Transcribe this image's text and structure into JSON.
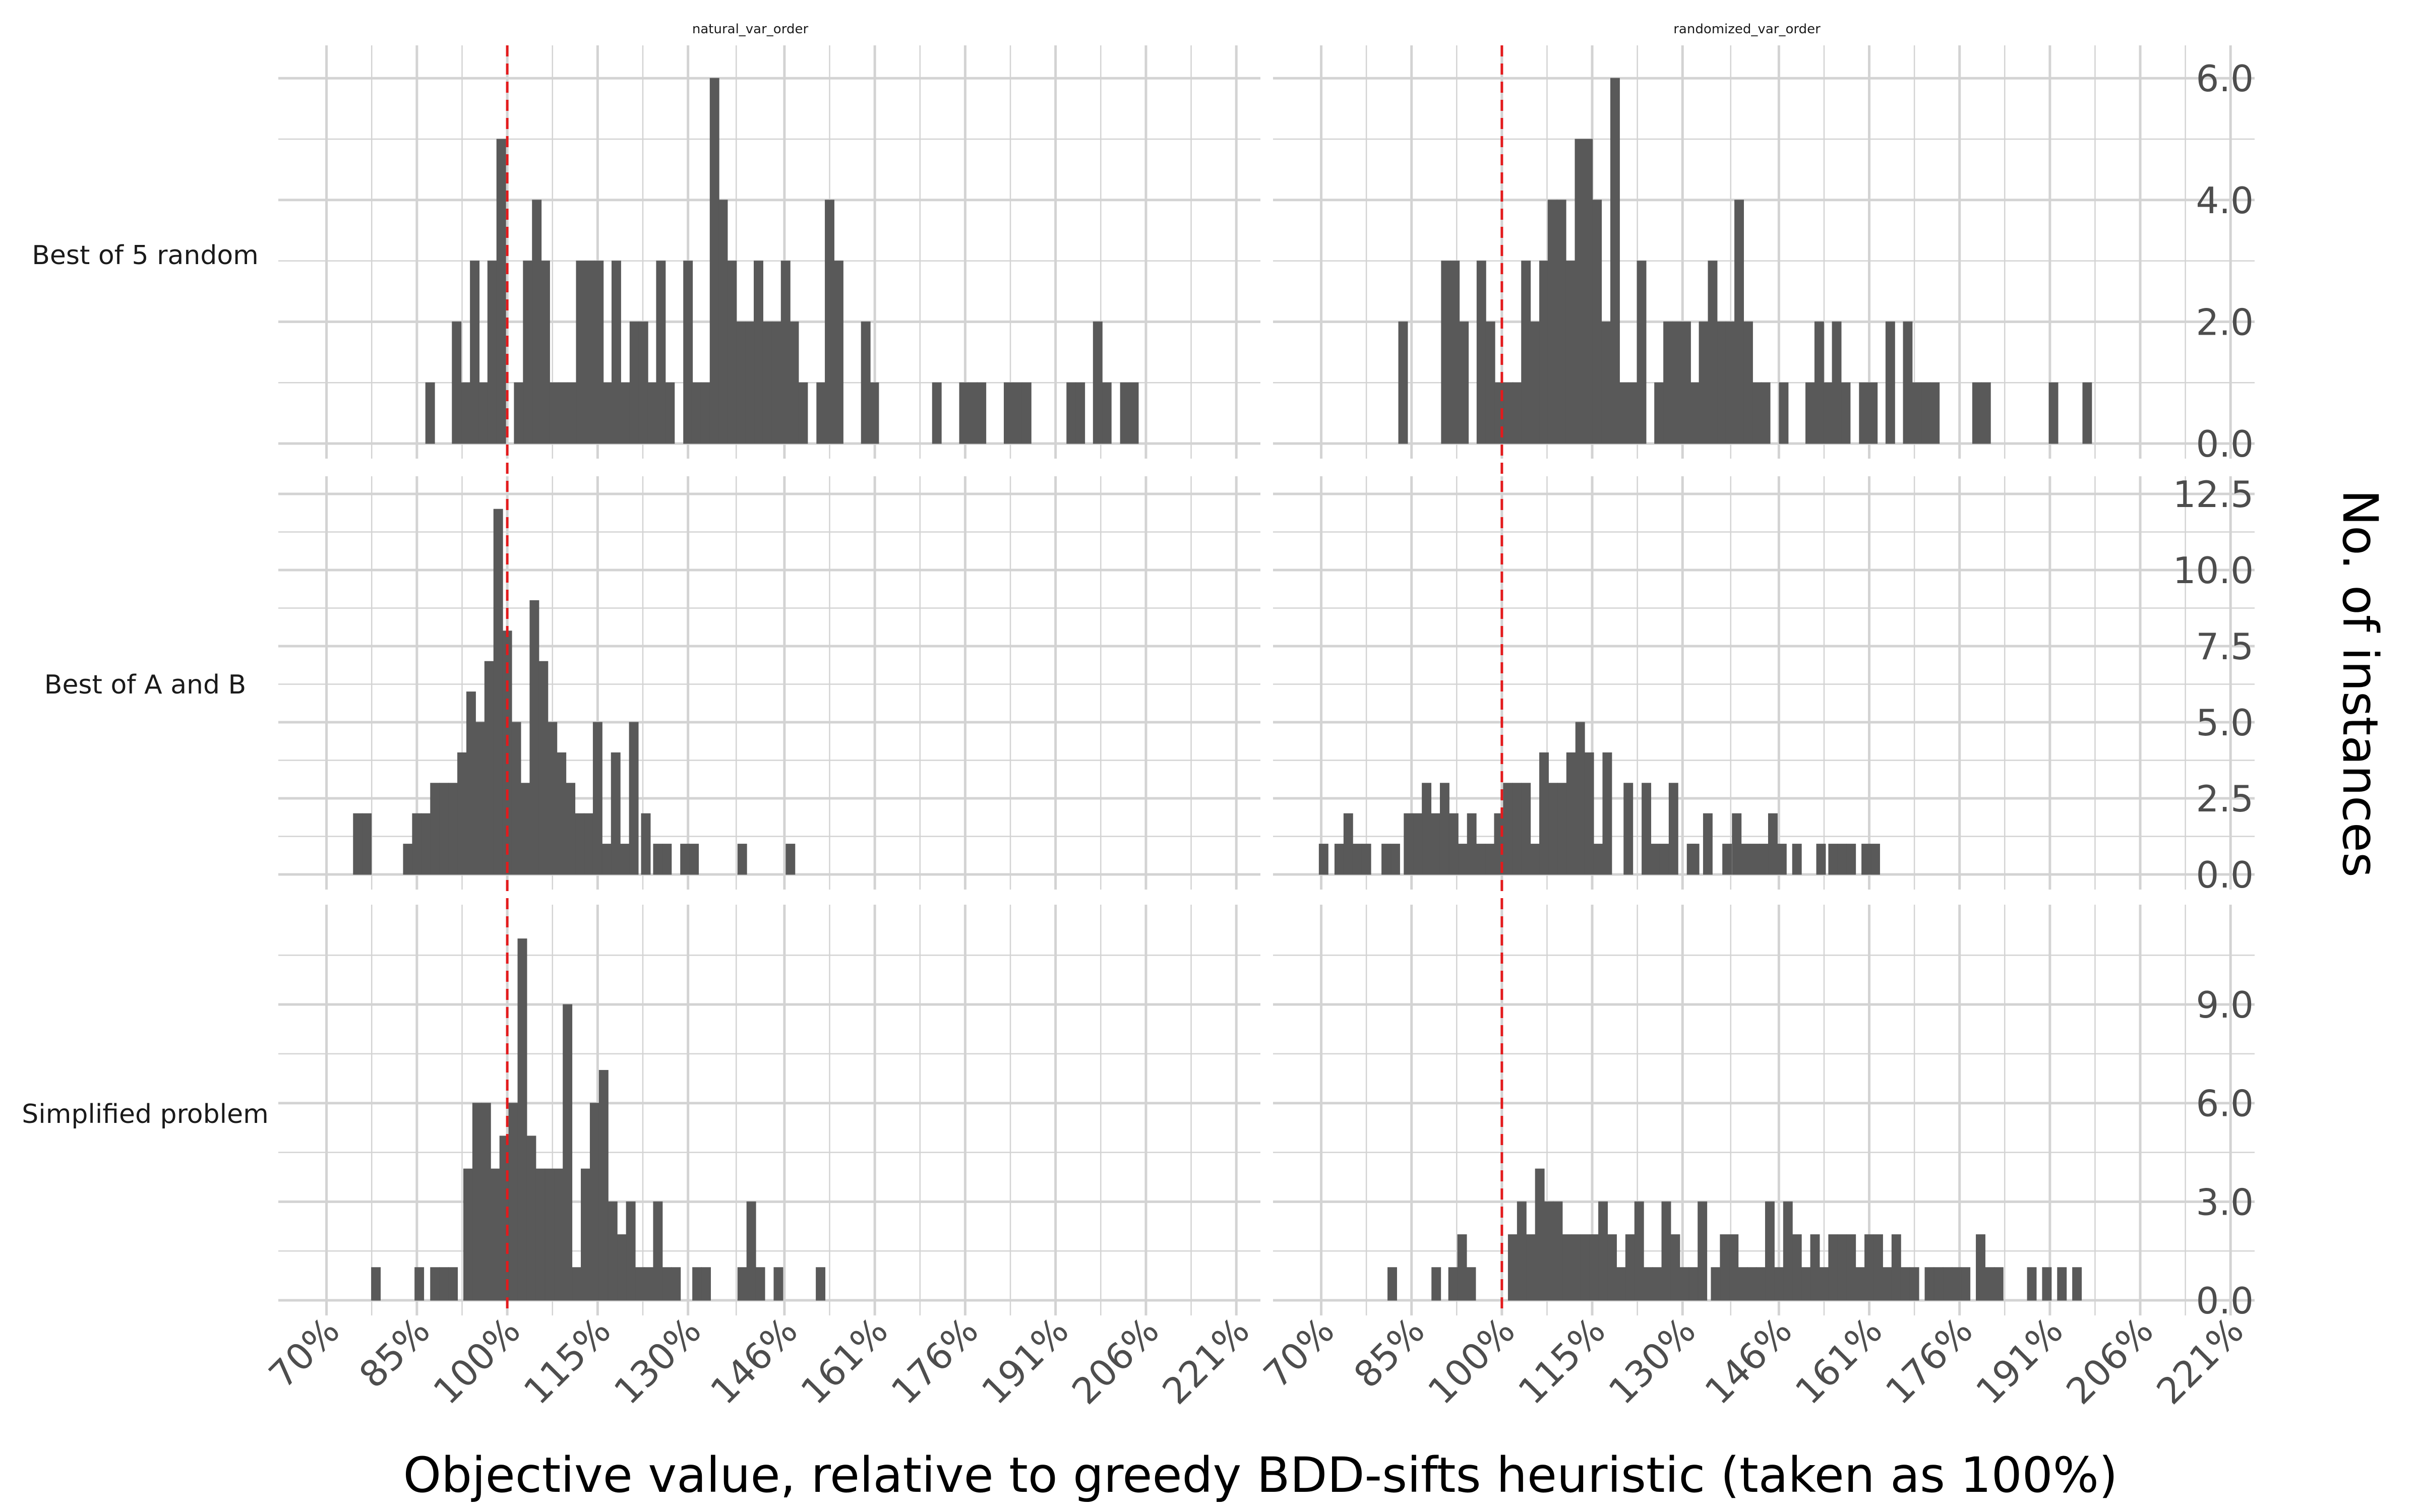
{
  "chart_data": {
    "type": "bar",
    "subtype": "faceted-histogram",
    "xlabel": "Objective value, relative to greedy BDD-sifts heuristic (taken as 100%)",
    "ylabel": "No. of instances",
    "columns": [
      "natural_var_order",
      "randomized_var_order"
    ],
    "rows": [
      "Best of 5 random",
      "Best of A and B",
      "Simplified problem"
    ],
    "x_ticks": [
      70,
      85,
      100,
      115,
      130,
      146,
      161,
      176,
      191,
      206,
      221
    ],
    "x_tick_labels": [
      "70%",
      "85%",
      "100%",
      "115%",
      "130%",
      "146%",
      "161%",
      "176%",
      "191%",
      "206%",
      "221%"
    ],
    "xlim": [
      62,
      225
    ],
    "bin_width": 1.5,
    "reference_line": {
      "x": 100,
      "color": "#e31a1c",
      "style": "dashed"
    },
    "bar_color": "#595959",
    "grid": true,
    "y_axis_position": "right",
    "row_scales": [
      {
        "ylim": [
          0,
          6.25
        ],
        "ticks": [
          0,
          2,
          4,
          6
        ],
        "tick_labels": [
          "0.0",
          "2.0",
          "4.0",
          "6.0"
        ]
      },
      {
        "ylim": [
          0,
          12.5
        ],
        "ticks": [
          0,
          2.5,
          5,
          7.5,
          10,
          12.5
        ],
        "tick_labels": [
          "0.0",
          "2.5",
          "5.0",
          "7.5",
          "10.0",
          "12.5"
        ]
      },
      {
        "ylim": [
          0,
          11.5
        ],
        "ticks": [
          0,
          3,
          6,
          9
        ],
        "tick_labels": [
          "0.0",
          "3.0",
          "6.0",
          "9.0"
        ]
      }
    ],
    "panels": [
      {
        "row": 0,
        "col": 0,
        "bins": [
          [
            87.2,
            1
          ],
          [
            91.6,
            2
          ],
          [
            93.1,
            1
          ],
          [
            94.6,
            3
          ],
          [
            96.0,
            1
          ],
          [
            97.5,
            3
          ],
          [
            99.0,
            5
          ],
          [
            101.9,
            1
          ],
          [
            103.4,
            3
          ],
          [
            104.9,
            4
          ],
          [
            106.3,
            3
          ],
          [
            107.8,
            1
          ],
          [
            109.3,
            1
          ],
          [
            110.8,
            1
          ],
          [
            112.2,
            3
          ],
          [
            113.7,
            3
          ],
          [
            115.2,
            3
          ],
          [
            116.7,
            1
          ],
          [
            118.1,
            3
          ],
          [
            119.6,
            1
          ],
          [
            121.1,
            2
          ],
          [
            122.6,
            2
          ],
          [
            124.0,
            1
          ],
          [
            125.5,
            3
          ],
          [
            127.0,
            1
          ],
          [
            130.0,
            3
          ],
          [
            131.4,
            1
          ],
          [
            132.9,
            1
          ],
          [
            134.4,
            6
          ],
          [
            135.8,
            4
          ],
          [
            137.3,
            3
          ],
          [
            138.8,
            2
          ],
          [
            140.3,
            2
          ],
          [
            141.7,
            3
          ],
          [
            143.2,
            2
          ],
          [
            144.7,
            2
          ],
          [
            146.2,
            3
          ],
          [
            147.6,
            2
          ],
          [
            149.1,
            1
          ],
          [
            152.1,
            1
          ],
          [
            153.5,
            4
          ],
          [
            155.0,
            3
          ],
          [
            159.5,
            2
          ],
          [
            160.9,
            1
          ],
          [
            171.3,
            1
          ],
          [
            175.8,
            1
          ],
          [
            177.3,
            1
          ],
          [
            178.7,
            1
          ],
          [
            183.2,
            1
          ],
          [
            184.7,
            1
          ],
          [
            186.2,
            1
          ],
          [
            193.6,
            1
          ],
          [
            195.1,
            1
          ],
          [
            198.0,
            2
          ],
          [
            199.5,
            1
          ],
          [
            202.5,
            1
          ],
          [
            204.0,
            1
          ]
        ]
      },
      {
        "row": 0,
        "col": 1,
        "bins": [
          [
            83.6,
            2
          ],
          [
            90.7,
            3
          ],
          [
            92.2,
            3
          ],
          [
            93.7,
            2
          ],
          [
            96.6,
            3
          ],
          [
            98.1,
            2
          ],
          [
            99.6,
            1
          ],
          [
            101.1,
            1
          ],
          [
            102.5,
            1
          ],
          [
            104.0,
            3
          ],
          [
            105.5,
            2
          ],
          [
            107.0,
            3
          ],
          [
            108.4,
            4
          ],
          [
            109.9,
            4
          ],
          [
            111.4,
            3
          ],
          [
            112.9,
            5
          ],
          [
            114.3,
            5
          ],
          [
            115.8,
            4
          ],
          [
            117.3,
            2
          ],
          [
            118.8,
            6
          ],
          [
            120.2,
            1
          ],
          [
            121.7,
            1
          ],
          [
            123.2,
            3
          ],
          [
            126.1,
            1
          ],
          [
            127.6,
            2
          ],
          [
            129.1,
            2
          ],
          [
            130.6,
            2
          ],
          [
            132.0,
            1
          ],
          [
            133.5,
            2
          ],
          [
            135.0,
            3
          ],
          [
            136.5,
            2
          ],
          [
            137.9,
            2
          ],
          [
            139.4,
            4
          ],
          [
            140.9,
            2
          ],
          [
            142.4,
            1
          ],
          [
            143.8,
            1
          ],
          [
            146.8,
            1
          ],
          [
            151.2,
            1
          ],
          [
            152.7,
            2
          ],
          [
            154.2,
            1
          ],
          [
            155.6,
            2
          ],
          [
            157.1,
            1
          ],
          [
            160.1,
            1
          ],
          [
            161.6,
            1
          ],
          [
            164.5,
            2
          ],
          [
            167.4,
            2
          ],
          [
            168.9,
            1
          ],
          [
            170.4,
            1
          ],
          [
            171.9,
            1
          ],
          [
            178.9,
            1
          ],
          [
            180.4,
            1
          ],
          [
            191.6,
            1
          ],
          [
            197.2,
            1
          ]
        ]
      },
      {
        "row": 1,
        "col": 0,
        "bins": [
          [
            75.2,
            2
          ],
          [
            76.7,
            2
          ],
          [
            83.5,
            1
          ],
          [
            85.0,
            2
          ],
          [
            86.5,
            2
          ],
          [
            88.0,
            3
          ],
          [
            89.5,
            3
          ],
          [
            91.0,
            3
          ],
          [
            92.5,
            4
          ],
          [
            94.0,
            6
          ],
          [
            95.5,
            5
          ],
          [
            97.0,
            7
          ],
          [
            98.5,
            12
          ],
          [
            100.0,
            8
          ],
          [
            101.5,
            5
          ],
          [
            103.0,
            3
          ],
          [
            104.5,
            9
          ],
          [
            106.0,
            7
          ],
          [
            107.5,
            5
          ],
          [
            109.0,
            4
          ],
          [
            110.5,
            3
          ],
          [
            112.0,
            2
          ],
          [
            113.5,
            2
          ],
          [
            115.0,
            5
          ],
          [
            116.5,
            1
          ],
          [
            118.0,
            4
          ],
          [
            119.5,
            1
          ],
          [
            121.0,
            5
          ],
          [
            123.0,
            2
          ],
          [
            125.0,
            1
          ],
          [
            126.5,
            1
          ],
          [
            129.5,
            1
          ],
          [
            131.0,
            1
          ],
          [
            139.0,
            1
          ],
          [
            147.0,
            1
          ]
        ]
      },
      {
        "row": 1,
        "col": 1,
        "bins": [
          [
            70.4,
            1
          ],
          [
            73.0,
            1
          ],
          [
            74.5,
            2
          ],
          [
            76.0,
            1
          ],
          [
            77.5,
            1
          ],
          [
            80.8,
            1
          ],
          [
            82.3,
            1
          ],
          [
            84.5,
            2
          ],
          [
            86.0,
            2
          ],
          [
            87.5,
            3
          ],
          [
            89.0,
            2
          ],
          [
            90.5,
            3
          ],
          [
            92.0,
            2
          ],
          [
            93.5,
            1
          ],
          [
            95.0,
            2
          ],
          [
            96.5,
            1
          ],
          [
            98.0,
            1
          ],
          [
            99.5,
            2
          ],
          [
            101.0,
            3
          ],
          [
            102.5,
            3
          ],
          [
            104.0,
            3
          ],
          [
            105.5,
            1
          ],
          [
            107.0,
            4
          ],
          [
            108.5,
            3
          ],
          [
            110.0,
            3
          ],
          [
            111.5,
            4
          ],
          [
            113.0,
            5
          ],
          [
            114.5,
            4
          ],
          [
            116.0,
            1
          ],
          [
            117.5,
            4
          ],
          [
            121.0,
            3
          ],
          [
            124.0,
            3
          ],
          [
            125.5,
            1
          ],
          [
            127.0,
            1
          ],
          [
            128.5,
            3
          ],
          [
            131.5,
            1
          ],
          [
            132.0,
            1
          ],
          [
            134.2,
            2
          ],
          [
            137.4,
            1
          ],
          [
            139.0,
            2
          ],
          [
            140.5,
            1
          ],
          [
            142.0,
            1
          ],
          [
            143.5,
            1
          ],
          [
            145.0,
            2
          ],
          [
            146.5,
            1
          ],
          [
            149.0,
            1
          ],
          [
            153.0,
            1
          ],
          [
            155.0,
            1
          ],
          [
            156.5,
            1
          ],
          [
            158.0,
            1
          ],
          [
            160.5,
            1
          ],
          [
            162.0,
            1
          ]
        ]
      },
      {
        "row": 2,
        "col": 0,
        "bins": [
          [
            78.2,
            1
          ],
          [
            85.4,
            1
          ],
          [
            88.0,
            1
          ],
          [
            89.5,
            1
          ],
          [
            91.0,
            1
          ],
          [
            93.5,
            4
          ],
          [
            95.0,
            6
          ],
          [
            96.5,
            6
          ],
          [
            98.0,
            4
          ],
          [
            99.5,
            5
          ],
          [
            101.0,
            6
          ],
          [
            102.5,
            11
          ],
          [
            104.0,
            5
          ],
          [
            105.5,
            4
          ],
          [
            107.0,
            4
          ],
          [
            108.5,
            4
          ],
          [
            110.0,
            9
          ],
          [
            111.5,
            1
          ],
          [
            113.0,
            4
          ],
          [
            114.5,
            6
          ],
          [
            116.0,
            7
          ],
          [
            117.5,
            3
          ],
          [
            119.0,
            2
          ],
          [
            120.5,
            3
          ],
          [
            122.0,
            1
          ],
          [
            123.5,
            1
          ],
          [
            125.0,
            3
          ],
          [
            126.5,
            1
          ],
          [
            128.0,
            1
          ],
          [
            131.5,
            1
          ],
          [
            133.0,
            1
          ],
          [
            139.0,
            1
          ],
          [
            140.5,
            3
          ],
          [
            142.0,
            1
          ],
          [
            145.0,
            1
          ],
          [
            152.0,
            1
          ]
        ]
      },
      {
        "row": 2,
        "col": 1,
        "bins": [
          [
            81.8,
            1
          ],
          [
            89.1,
            1
          ],
          [
            91.9,
            1
          ],
          [
            93.4,
            2
          ],
          [
            94.9,
            1
          ],
          [
            101.8,
            2
          ],
          [
            103.3,
            3
          ],
          [
            104.8,
            2
          ],
          [
            106.3,
            4
          ],
          [
            107.8,
            3
          ],
          [
            109.3,
            3
          ],
          [
            110.8,
            2
          ],
          [
            112.3,
            2
          ],
          [
            113.8,
            2
          ],
          [
            115.3,
            2
          ],
          [
            116.8,
            3
          ],
          [
            118.3,
            2
          ],
          [
            119.8,
            1
          ],
          [
            121.3,
            2
          ],
          [
            122.8,
            3
          ],
          [
            124.3,
            1
          ],
          [
            125.8,
            1
          ],
          [
            127.3,
            3
          ],
          [
            128.8,
            2
          ],
          [
            130.3,
            1
          ],
          [
            131.8,
            1
          ],
          [
            133.3,
            3
          ],
          [
            135.5,
            1
          ],
          [
            137.0,
            2
          ],
          [
            138.5,
            2
          ],
          [
            140.0,
            1
          ],
          [
            141.5,
            1
          ],
          [
            143.0,
            1
          ],
          [
            144.5,
            3
          ],
          [
            146.0,
            1
          ],
          [
            147.5,
            3
          ],
          [
            149.0,
            2
          ],
          [
            150.5,
            1
          ],
          [
            152.0,
            2
          ],
          [
            153.5,
            1
          ],
          [
            155.0,
            2
          ],
          [
            156.5,
            2
          ],
          [
            158.0,
            2
          ],
          [
            159.5,
            1
          ],
          [
            161.0,
            2
          ],
          [
            162.5,
            2
          ],
          [
            164.0,
            1
          ],
          [
            165.5,
            2
          ],
          [
            167.0,
            1
          ],
          [
            168.5,
            1
          ],
          [
            171.0,
            1
          ],
          [
            172.5,
            1
          ],
          [
            174.0,
            1
          ],
          [
            175.5,
            1
          ],
          [
            177.0,
            1
          ],
          [
            179.5,
            2
          ],
          [
            181.0,
            1
          ],
          [
            182.5,
            1
          ],
          [
            188.0,
            1
          ],
          [
            190.5,
            1
          ],
          [
            193.0,
            1
          ],
          [
            195.5,
            1
          ]
        ]
      }
    ]
  }
}
